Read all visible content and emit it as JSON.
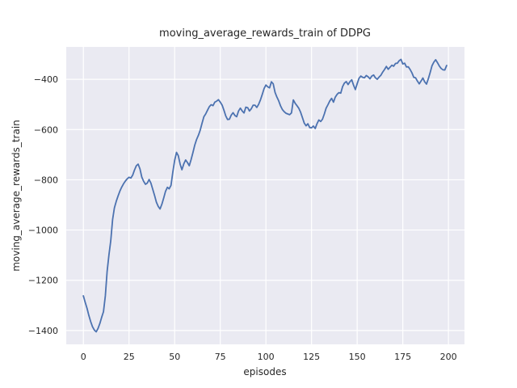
{
  "figure": {
    "title": "moving_average_rewards_train of DDPG",
    "xlabel": "episodes",
    "ylabel": "moving_average_rewards_train"
  },
  "chart_data": {
    "type": "line",
    "title": "moving_average_rewards_train of DDPG",
    "xlabel": "episodes",
    "ylabel": "moving_average_rewards_train",
    "x_ticks": [
      0,
      25,
      50,
      75,
      100,
      125,
      150,
      175,
      200
    ],
    "y_ticks": [
      -400,
      -600,
      -800,
      -1000,
      -1200,
      -1400
    ],
    "xlim": [
      -9.4,
      208.8
    ],
    "ylim": [
      -1455,
      -271
    ],
    "grid": true,
    "legend": null,
    "colors": {
      "line": "#4C72B0",
      "axes_background": "#EAEAF2",
      "grid": "#FFFFFF",
      "text": "#262626",
      "figure_background": "#FFFFFF"
    },
    "series": [
      {
        "name": "moving_average_rewards_train",
        "x_is_index": true,
        "values": [
          -1262,
          -1288,
          -1312,
          -1340,
          -1365,
          -1385,
          -1398,
          -1405,
          -1392,
          -1372,
          -1348,
          -1325,
          -1262,
          -1165,
          -1098,
          -1043,
          -958,
          -912,
          -886,
          -864,
          -845,
          -829,
          -816,
          -805,
          -796,
          -790,
          -793,
          -782,
          -761,
          -744,
          -738,
          -757,
          -789,
          -806,
          -818,
          -813,
          -799,
          -813,
          -838,
          -863,
          -889,
          -906,
          -916,
          -897,
          -872,
          -846,
          -830,
          -836,
          -822,
          -770,
          -723,
          -691,
          -704,
          -738,
          -760,
          -737,
          -721,
          -731,
          -744,
          -720,
          -692,
          -662,
          -640,
          -623,
          -603,
          -575,
          -549,
          -538,
          -523,
          -509,
          -501,
          -505,
          -491,
          -487,
          -481,
          -491,
          -503,
          -523,
          -546,
          -560,
          -559,
          -543,
          -533,
          -544,
          -549,
          -526,
          -515,
          -526,
          -534,
          -511,
          -513,
          -526,
          -517,
          -503,
          -503,
          -512,
          -500,
          -482,
          -460,
          -437,
          -423,
          -430,
          -434,
          -410,
          -418,
          -452,
          -470,
          -486,
          -506,
          -520,
          -529,
          -535,
          -538,
          -541,
          -534,
          -482,
          -495,
          -505,
          -515,
          -531,
          -553,
          -574,
          -585,
          -577,
          -592,
          -593,
          -586,
          -596,
          -577,
          -562,
          -568,
          -559,
          -538,
          -515,
          -501,
          -486,
          -476,
          -491,
          -471,
          -460,
          -453,
          -455,
          -429,
          -415,
          -409,
          -421,
          -410,
          -402,
          -423,
          -441,
          -418,
          -396,
          -387,
          -392,
          -394,
          -385,
          -390,
          -398,
          -387,
          -383,
          -394,
          -400,
          -391,
          -384,
          -371,
          -361,
          -349,
          -360,
          -352,
          -344,
          -348,
          -337,
          -336,
          -326,
          -321,
          -339,
          -336,
          -351,
          -350,
          -361,
          -374,
          -392,
          -394,
          -407,
          -418,
          -407,
          -395,
          -410,
          -419,
          -397,
          -373,
          -346,
          -332,
          -322,
          -334,
          -347,
          -357,
          -362,
          -363,
          -345
        ]
      }
    ]
  }
}
